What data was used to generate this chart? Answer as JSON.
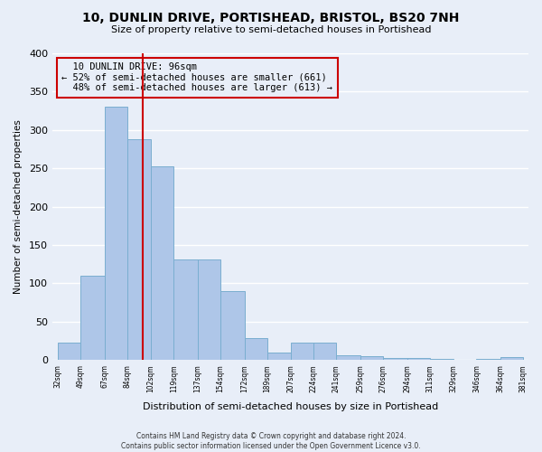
{
  "title": "10, DUNLIN DRIVE, PORTISHEAD, BRISTOL, BS20 7NH",
  "subtitle": "Size of property relative to semi-detached houses in Portishead",
  "xlabel": "Distribution of semi-detached houses by size in Portishead",
  "ylabel": "Number of semi-detached properties",
  "footer_line1": "Contains HM Land Registry data © Crown copyright and database right 2024.",
  "footer_line2": "Contains public sector information licensed under the Open Government Licence v3.0.",
  "bar_edges": [
    32,
    49,
    67,
    84,
    102,
    119,
    137,
    154,
    172,
    189,
    207,
    224,
    241,
    259,
    276,
    294,
    311,
    329,
    346,
    364,
    381
  ],
  "bar_heights": [
    23,
    110,
    330,
    288,
    253,
    131,
    131,
    90,
    29,
    10,
    22,
    22,
    6,
    5,
    3,
    2,
    1,
    0,
    1,
    4
  ],
  "bar_color": "#aec6e8",
  "bar_edge_color": "#7aaed0",
  "property_size": 96,
  "property_label": "10 DUNLIN DRIVE: 96sqm",
  "pct_smaller": 52,
  "count_smaller": 661,
  "pct_larger": 48,
  "count_larger": 613,
  "vline_color": "#cc0000",
  "annotation_box_color": "#cc0000",
  "ylim": [
    0,
    400
  ],
  "yticks": [
    0,
    50,
    100,
    150,
    200,
    250,
    300,
    350,
    400
  ],
  "background_color": "#e8eef8",
  "grid_color": "#ffffff"
}
